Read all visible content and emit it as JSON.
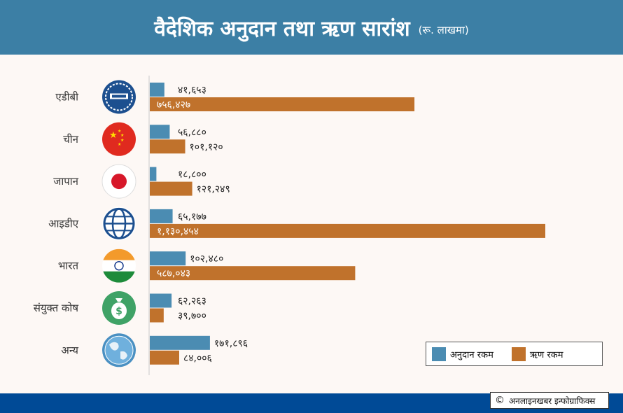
{
  "title": {
    "main": "वैदेशिक अनुदान तथा ऋण सारांश",
    "unit": "(रू. लाखमा)"
  },
  "credit": {
    "symbol": "©",
    "text": "अनलाइनखबर इन्फोग्राफिक्स"
  },
  "colors": {
    "grant": "#4b8cb2",
    "loan": "#c0722c",
    "header": "#3c7fa5",
    "footer": "#004a96"
  },
  "chart_data": {
    "type": "bar",
    "orientation": "horizontal",
    "categories": [
      "एडीबी",
      "चीन",
      "जापान",
      "आइडीए",
      "भारत",
      "संयुक्त कोष",
      "अन्य"
    ],
    "icons": [
      "adb-logo-icon",
      "china-flag-icon",
      "japan-flag-icon",
      "world-bank-logo-icon",
      "india-flag-icon",
      "money-bag-icon",
      "globe-icon"
    ],
    "series": [
      {
        "name": "अनुदान रकम",
        "values": [
          41653,
          56880,
          18800,
          65177,
          102480,
          62263,
          171896
        ],
        "labels": [
          "४१,६५३",
          "५६,८८०",
          "१८,८००",
          "६५,१७७",
          "१०२,४८०",
          "६२,२६३",
          "१७१,८९६"
        ]
      },
      {
        "name": "ऋण रकम",
        "values": [
          756427,
          101120,
          121249,
          1130454,
          587043,
          39700,
          84006
        ],
        "labels": [
          "७५६,४२७",
          "१०१,१२०",
          "१२१,२४९",
          "१,१३०,४५४",
          "५८७,०४३",
          "३९,७००",
          "८४,००६"
        ]
      }
    ],
    "legend_position": "bottom-right",
    "grid": false
  }
}
